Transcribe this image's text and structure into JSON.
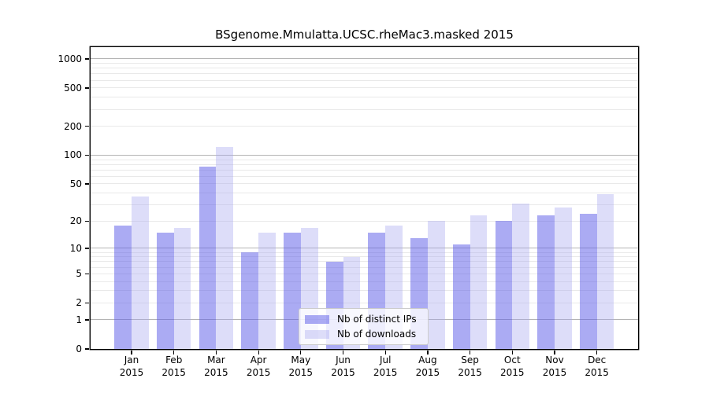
{
  "chart_data": {
    "type": "bar",
    "title": "BSgenome.Mmulatta.UCSC.rheMac3.masked 2015",
    "categories": [
      "Jan 2015",
      "Feb 2015",
      "Mar 2015",
      "Apr 2015",
      "May 2015",
      "Jun 2015",
      "Jul 2015",
      "Aug 2015",
      "Sep 2015",
      "Oct 2015",
      "Nov 2015",
      "Dec 2015"
    ],
    "series": [
      {
        "name": "Nb of distinct IPs",
        "values": [
          18,
          15,
          76,
          9,
          15,
          7,
          15,
          13,
          11,
          20,
          23,
          24
        ],
        "color": "rgba(94,94,232,0.52)"
      },
      {
        "name": "Nb of downloads",
        "values": [
          37,
          17,
          122,
          15,
          17,
          8,
          18,
          20,
          23,
          31,
          28,
          39
        ],
        "color": "rgba(165,165,240,0.38)"
      }
    ],
    "xlabel": "",
    "ylabel": "",
    "yscale": "log1p",
    "yticks": [
      0,
      1,
      2,
      5,
      10,
      20,
      50,
      100,
      200,
      500,
      1000
    ],
    "ylim": [
      0,
      1300
    ],
    "grid": {
      "major_lines": [
        1,
        10,
        100,
        1000
      ],
      "minor_lines": [
        2,
        3,
        4,
        5,
        6,
        7,
        8,
        9,
        20,
        30,
        40,
        50,
        60,
        70,
        80,
        90,
        200,
        300,
        400,
        500,
        600,
        700,
        800,
        900
      ]
    },
    "legend_position": "inside-bottom-center"
  },
  "colors": {
    "background": "#ffffff",
    "axis": "#000000",
    "grid_major": "#b4b4b4",
    "grid_minor": "#e9e9e9",
    "bar_distinct_ips_rendered": "#a9a9f1",
    "bar_downloads_rendered": "#dcdcf8",
    "legend_border": "#cccccc"
  }
}
